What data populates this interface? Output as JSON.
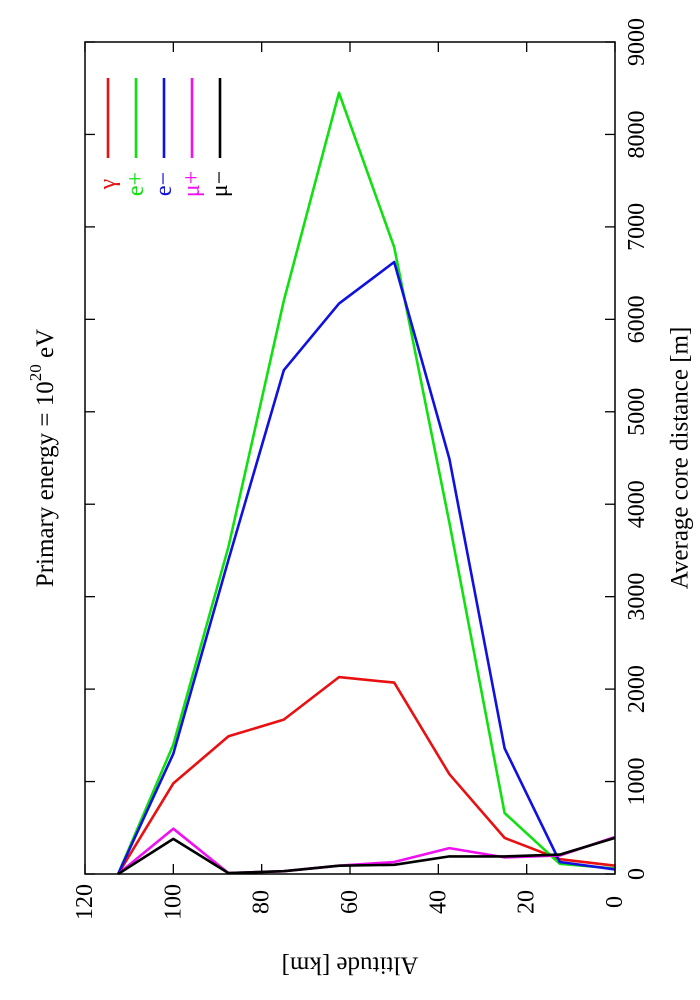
{
  "chart_data": {
    "type": "line",
    "title": "Primary energy = 10",
    "title_superscript": "20",
    "title_suffix": " eV",
    "xlabel": "Average core distance [m]",
    "ylabel": "Altitude [km]",
    "xlim": [
      0,
      9000
    ],
    "ylim": [
      0,
      120
    ],
    "xticks": [
      "0",
      "1000",
      "2000",
      "3000",
      "4000",
      "5000",
      "6000",
      "7000",
      "8000",
      "9000"
    ],
    "yticks": [
      "0",
      "20",
      "40",
      "60",
      "80",
      "100",
      "120"
    ],
    "legend_position": "top-right",
    "grid": false,
    "orientation": "rotated 90° counter-clockwise",
    "series": [
      {
        "name": "γ",
        "color": "#e81010",
        "points": [
          [
            0,
            112.5
          ],
          [
            980,
            100
          ],
          [
            1490,
            87.5
          ],
          [
            1670,
            75
          ],
          [
            2130,
            62.5
          ],
          [
            2070,
            50
          ],
          [
            1080,
            37.5
          ],
          [
            390,
            25
          ],
          [
            160,
            12.5
          ],
          [
            90,
            0
          ]
        ]
      },
      {
        "name": "e+",
        "color": "#10e010",
        "points": [
          [
            0,
            112.5
          ],
          [
            1400,
            100
          ],
          [
            3540,
            87.5
          ],
          [
            6200,
            75
          ],
          [
            8450,
            62.5
          ],
          [
            6780,
            50
          ],
          [
            3800,
            37.5
          ],
          [
            660,
            25
          ],
          [
            110,
            12.5
          ],
          [
            60,
            0
          ]
        ]
      },
      {
        "name": "e−",
        "color": "#1010e0",
        "points": [
          [
            0,
            112.5
          ],
          [
            1300,
            100
          ],
          [
            3400,
            87.5
          ],
          [
            5450,
            75
          ],
          [
            6170,
            62.5
          ],
          [
            6620,
            50
          ],
          [
            4490,
            37.5
          ],
          [
            1360,
            25
          ],
          [
            130,
            12.5
          ],
          [
            50,
            0
          ]
        ]
      },
      {
        "name": "μ+",
        "color": "#f010f0",
        "points": [
          [
            0,
            112.5
          ],
          [
            490,
            100
          ],
          [
            10,
            87.5
          ],
          [
            30,
            75
          ],
          [
            90,
            62.5
          ],
          [
            130,
            50
          ],
          [
            280,
            37.5
          ],
          [
            180,
            25
          ],
          [
            200,
            12.5
          ],
          [
            400,
            0
          ]
        ]
      },
      {
        "name": "μ−",
        "color": "#000000",
        "points": [
          [
            0,
            112.5
          ],
          [
            380,
            100
          ],
          [
            10,
            87.5
          ],
          [
            30,
            75
          ],
          [
            90,
            62.5
          ],
          [
            100,
            50
          ],
          [
            190,
            37.5
          ],
          [
            190,
            25
          ],
          [
            210,
            12.5
          ],
          [
            390,
            0
          ]
        ]
      }
    ]
  }
}
